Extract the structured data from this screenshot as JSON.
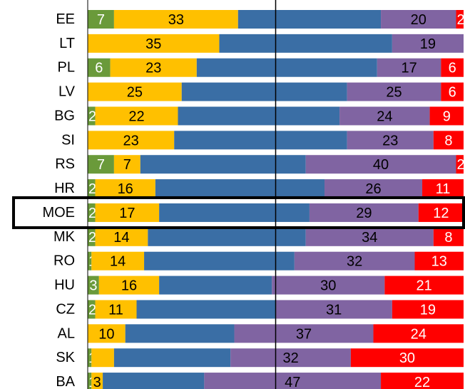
{
  "chart_data": {
    "type": "stacked_bar_h",
    "categories": [
      "EE",
      "LT",
      "PL",
      "LV",
      "BG",
      "SI",
      "RS",
      "HR",
      "MOE",
      "MK",
      "RO",
      "HU",
      "CZ",
      "AL",
      "SK",
      "BA"
    ],
    "xlim": [
      0,
      100
    ],
    "reference_line": 50,
    "highlight_index": 8,
    "series": [
      {
        "color": "#6a9a3a",
        "label_color": "#ffffff",
        "values": [
          7,
          null,
          6,
          null,
          2,
          null,
          7,
          2,
          2,
          2,
          1,
          3,
          2,
          null,
          1,
          1
        ]
      },
      {
        "color": "#ffc000",
        "label_color": "#000000",
        "values": [
          33,
          35,
          23,
          25,
          22,
          23,
          7,
          16,
          17,
          14,
          14,
          16,
          11,
          10,
          6,
          3
        ],
        "value_labels": [
          "33",
          "35",
          "23",
          "25",
          "22",
          "23",
          "7",
          "16",
          "17",
          "14",
          "14",
          "16",
          "11",
          "10",
          null,
          "3"
        ]
      },
      {
        "color": "#3a6ea5",
        "show_labels": false,
        "values": [
          38,
          46,
          48,
          44,
          43,
          46,
          44,
          45,
          40,
          42,
          40,
          30,
          37,
          29,
          31,
          27
        ]
      },
      {
        "color": "#8064a2",
        "label_color": "#000000",
        "values": [
          20,
          19,
          17,
          25,
          24,
          23,
          40,
          26,
          29,
          34,
          32,
          30,
          31,
          37,
          32,
          47
        ]
      },
      {
        "color": "#ff0000",
        "label_color": "#ffffff",
        "values": [
          2,
          null,
          6,
          6,
          9,
          8,
          2,
          11,
          12,
          8,
          13,
          21,
          19,
          24,
          30,
          22
        ]
      }
    ]
  }
}
